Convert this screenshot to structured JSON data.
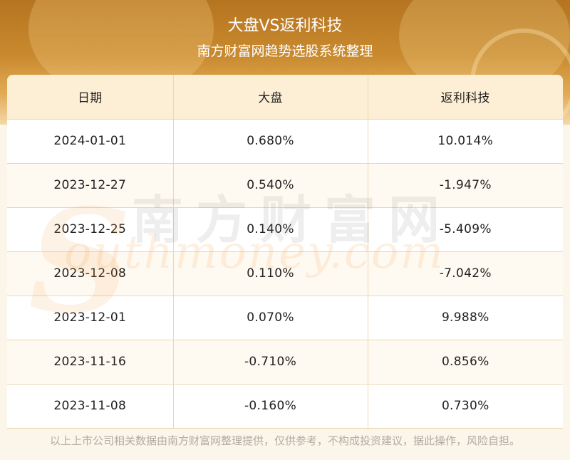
{
  "header": {
    "title": "大盘VS返利科技",
    "subtitle": "南方财富网趋势选股系统整理"
  },
  "table": {
    "columns": [
      "日期",
      "大盘",
      "返利科技"
    ],
    "rows": [
      [
        "2024-01-01",
        "0.680%",
        "10.014%"
      ],
      [
        "2023-12-27",
        "0.540%",
        "-1.947%"
      ],
      [
        "2023-12-25",
        "0.140%",
        "-5.409%"
      ],
      [
        "2023-12-08",
        "0.110%",
        "-7.042%"
      ],
      [
        "2023-12-01",
        "0.070%",
        "9.988%"
      ],
      [
        "2023-11-16",
        "-0.710%",
        "0.856%"
      ],
      [
        "2023-11-08",
        "-0.160%",
        "0.730%"
      ]
    ]
  },
  "watermark": {
    "cn": "南方财富网",
    "en": "outhmoney.com",
    "s": "S"
  },
  "footer": {
    "disclaimer": "以上上市公司相关数据由南方财富网整理提供，仅供参考，不构成投资建议，据此操作，风险自担。"
  },
  "colors": {
    "banner": "#c98a2f",
    "header_row": "#fdefd6",
    "grid": "#ead7b3",
    "footer_text": "#b0aca4"
  }
}
